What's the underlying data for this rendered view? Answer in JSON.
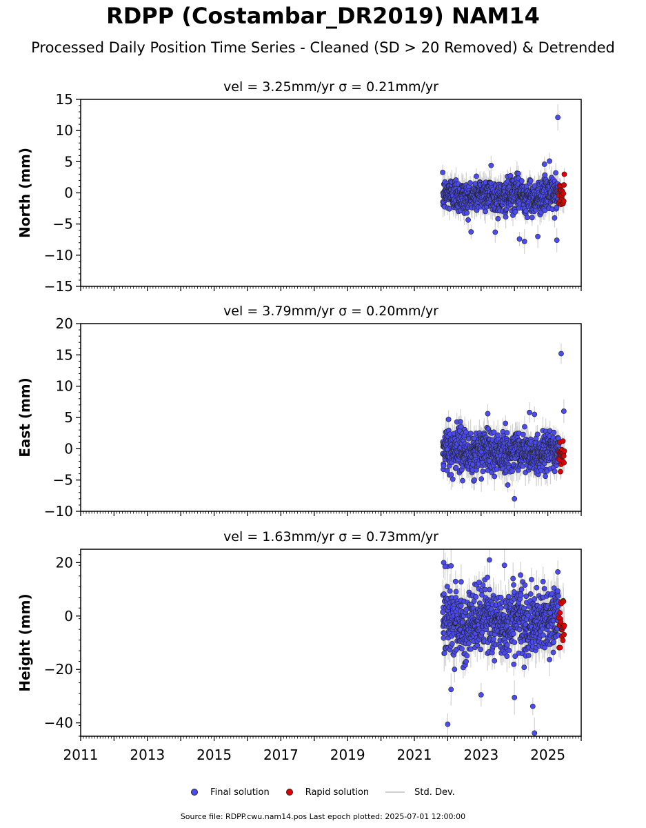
{
  "page": {
    "title": "RDPP (Costambar_DR2019) NAM14",
    "subtitle": "Processed Daily Position Time Series - Cleaned (SD > 20 Removed) & Detrended",
    "source": "Source file: RDPP.cwu.nam14.pos  Last epoch plotted: 2025-07-01 12:00:00"
  },
  "legend": {
    "final": "Final solution",
    "rapid": "Rapid solution",
    "stddev": "Std. Dev."
  },
  "colors": {
    "final": "#4b4bf0",
    "rapid": "#e00000",
    "stddev": "#c8c8c8"
  },
  "chart_data": [
    {
      "type": "scatter",
      "title": "vel = 3.25mm/yr   σ = 0.21mm/yr",
      "ylabel": "North (mm)",
      "xlim": [
        2011,
        2026
      ],
      "ylim": [
        -15,
        15
      ],
      "yticks": [
        -15,
        -10,
        -5,
        0,
        5,
        10,
        15
      ],
      "final_range": [
        2021.85,
        2025.33
      ],
      "rapid_range": [
        2025.33,
        2025.5
      ],
      "scatter_sd": 1.35,
      "sd_err": 1.5,
      "outliers": [
        {
          "x": 2025.3,
          "y": 12.1
        },
        {
          "x": 2025.27,
          "y": -7.6
        },
        {
          "x": 2024.15,
          "y": -7.4
        },
        {
          "x": 2024.3,
          "y": -7.8
        },
        {
          "x": 2024.7,
          "y": -7.0
        },
        {
          "x": 2023.3,
          "y": 4.4
        },
        {
          "x": 2024.9,
          "y": 4.6
        },
        {
          "x": 2025.05,
          "y": 5.1
        }
      ]
    },
    {
      "type": "scatter",
      "title": "vel = 3.79mm/yr   σ = 0.20mm/yr",
      "ylabel": "East (mm)",
      "xlim": [
        2011,
        2026
      ],
      "ylim": [
        -10,
        20
      ],
      "yticks": [
        -10,
        -5,
        0,
        5,
        10,
        15,
        20
      ],
      "final_range": [
        2021.85,
        2025.33
      ],
      "rapid_range": [
        2025.33,
        2025.5
      ],
      "scatter_sd": 1.6,
      "sd_err": 1.8,
      "outliers": [
        {
          "x": 2025.4,
          "y": 15.2
        },
        {
          "x": 2025.48,
          "y": 6.0
        },
        {
          "x": 2024.0,
          "y": -8.0
        },
        {
          "x": 2023.8,
          "y": -5.8
        },
        {
          "x": 2022.8,
          "y": -5.0
        },
        {
          "x": 2023.2,
          "y": 5.6
        },
        {
          "x": 2024.45,
          "y": 5.8
        },
        {
          "x": 2024.6,
          "y": 5.5
        }
      ]
    },
    {
      "type": "scatter",
      "title": "vel = 1.63mm/yr   σ = 0.73mm/yr",
      "ylabel": "Height (mm)",
      "xlim": [
        2011,
        2026
      ],
      "ylim": [
        -45,
        25
      ],
      "yticks": [
        -40,
        -20,
        0,
        20
      ],
      "xticks": [
        "2011",
        "2013",
        "2015",
        "2017",
        "2019",
        "2021",
        "2023",
        "2025"
      ],
      "final_range": [
        2021.85,
        2025.33
      ],
      "rapid_range": [
        2025.33,
        2025.5
      ],
      "scatter_sd": 6.0,
      "sd_err": 5.0,
      "outliers": [
        {
          "x": 2021.88,
          "y": 20.0
        },
        {
          "x": 2021.92,
          "y": 18.5
        },
        {
          "x": 2022.1,
          "y": 18.8
        },
        {
          "x": 2023.25,
          "y": 21.0
        },
        {
          "x": 2023.7,
          "y": 19.0
        },
        {
          "x": 2025.3,
          "y": 16.5
        },
        {
          "x": 2022.0,
          "y": -40.5
        },
        {
          "x": 2024.6,
          "y": -43.8
        },
        {
          "x": 2024.55,
          "y": -33.8
        },
        {
          "x": 2024.0,
          "y": -30.5
        },
        {
          "x": 2022.1,
          "y": -27.5
        },
        {
          "x": 2023.0,
          "y": -29.5
        }
      ]
    }
  ]
}
